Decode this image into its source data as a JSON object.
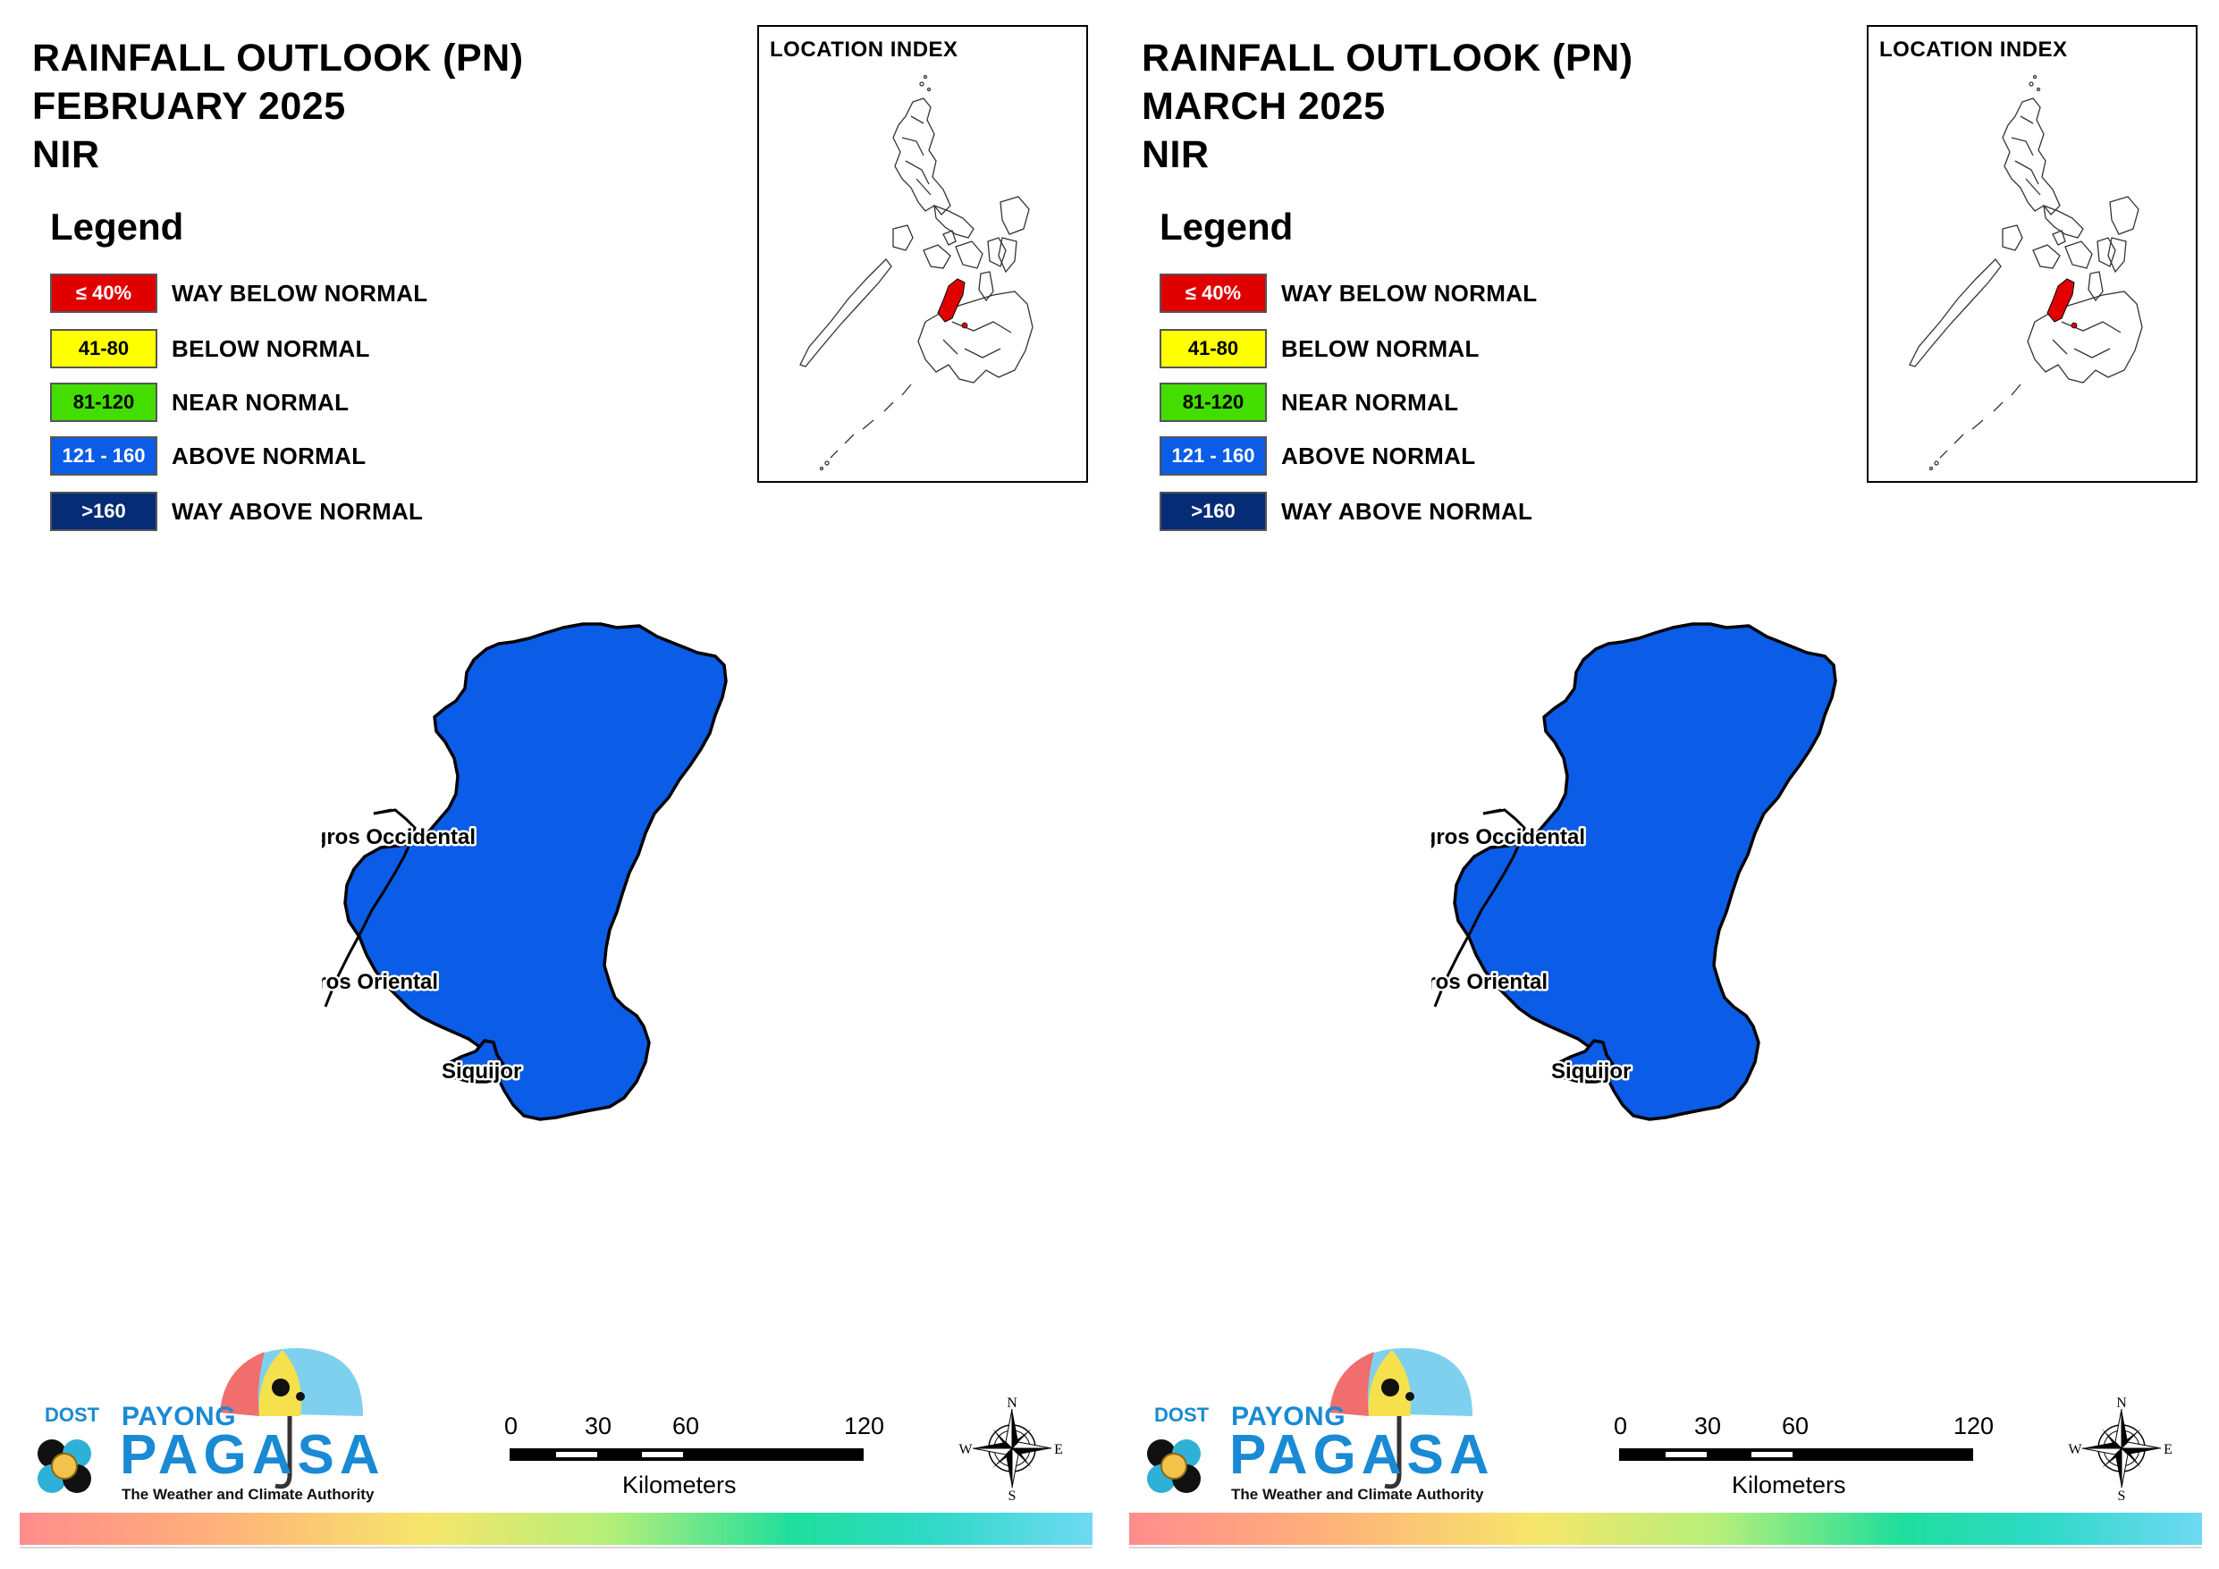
{
  "legend": {
    "title": "Legend",
    "items": [
      {
        "range": "≤ 40%",
        "label": "WAY BELOW NORMAL",
        "color": "#e00000",
        "text_color": "#ffffff"
      },
      {
        "range": "41-80",
        "label": "BELOW NORMAL",
        "color": "#ffff00",
        "text_color": "#000000"
      },
      {
        "range": "81-120",
        "label": "NEAR NORMAL",
        "color": "#44dd00",
        "text_color": "#000000"
      },
      {
        "range": "121 - 160",
        "label": "ABOVE NORMAL",
        "color": "#0b5ce6",
        "text_color": "#ffffff"
      },
      {
        "range": ">160",
        "label": "WAY ABOVE NORMAL",
        "color": "#062c75",
        "text_color": "#ffffff"
      }
    ]
  },
  "panels": [
    {
      "title_line1": "RAINFALL OUTLOOK (PN)",
      "title_line2": "FEBRUARY 2025",
      "title_line3": "NIR",
      "provinces": [
        {
          "name": "Negros Occidental",
          "category": "ABOVE NORMAL"
        },
        {
          "name": "Negros Oriental",
          "category": "ABOVE NORMAL"
        },
        {
          "name": "Siquijor",
          "category": "ABOVE NORMAL"
        }
      ]
    },
    {
      "title_line1": "RAINFALL OUTLOOK (PN)",
      "title_line2": "MARCH 2025",
      "title_line3": "NIR",
      "provinces": [
        {
          "name": "Negros Occidental",
          "category": "ABOVE NORMAL"
        },
        {
          "name": "Negros Oriental",
          "category": "ABOVE NORMAL"
        },
        {
          "name": "Siquijor",
          "category": "ABOVE NORMAL"
        }
      ]
    }
  ],
  "location_index": {
    "title": "LOCATION INDEX",
    "highlight_color": "#e00000"
  },
  "map_fill_color": "#0b5ce6",
  "scale_bar": {
    "ticks": [
      "0",
      "30",
      "60",
      "120"
    ],
    "unit": "Kilometers"
  },
  "compass": {
    "n": "N",
    "s": "S",
    "e": "E",
    "w": "W"
  },
  "logo": {
    "dost": "DOST",
    "payong": "PAYONG",
    "pagasa": "PAGASA",
    "tagline": "The Weather and Climate Authority"
  }
}
